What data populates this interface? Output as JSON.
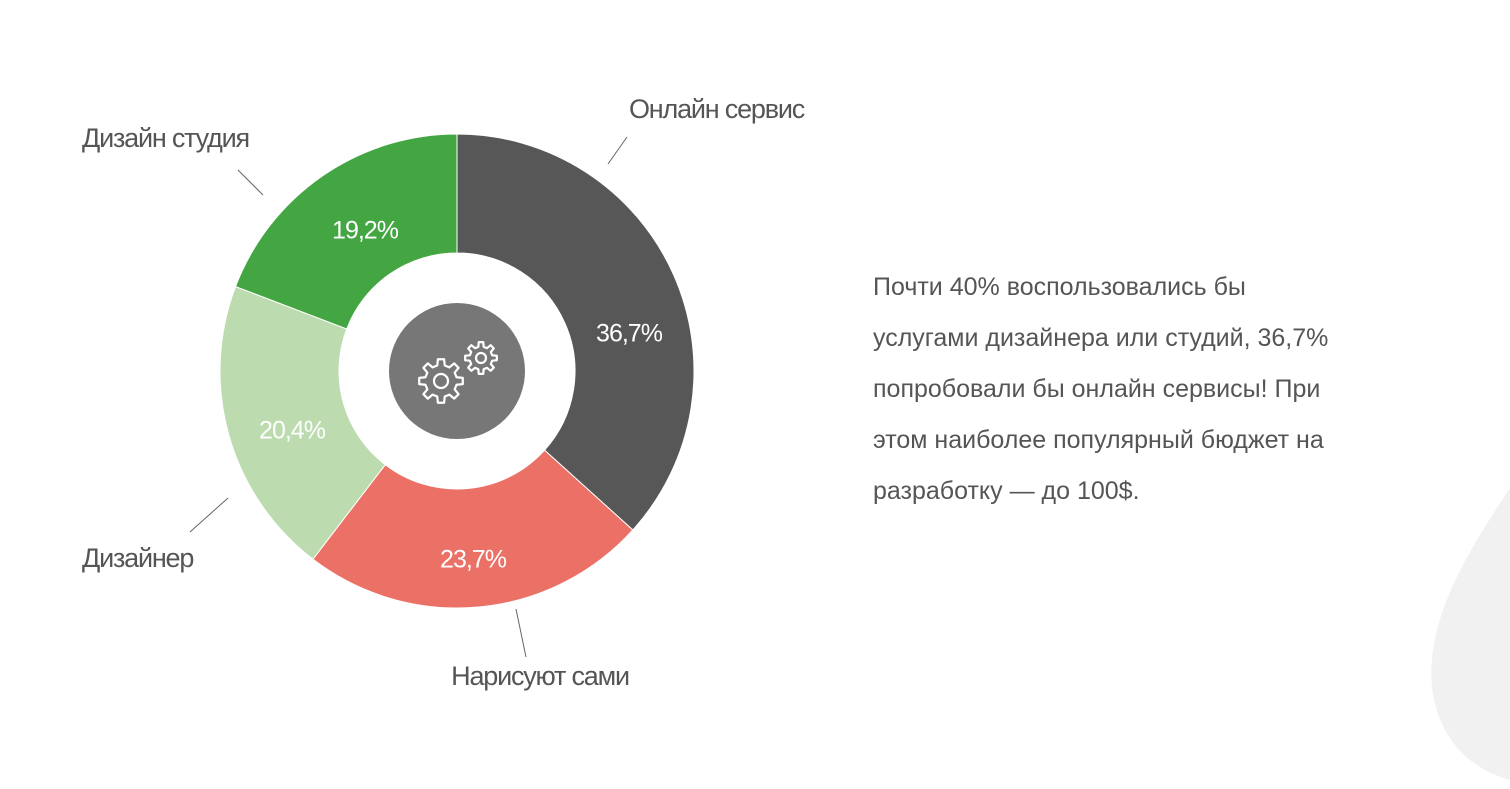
{
  "chart_data": {
    "type": "pie",
    "variant": "donut",
    "slices": [
      {
        "label": "Онлайн сервис",
        "value": 36.7,
        "value_label": "36,7%",
        "color": "#575757"
      },
      {
        "label": "Нарисуют сами",
        "value": 23.7,
        "value_label": "23,7%",
        "color": "#eb7167"
      },
      {
        "label": "Дизайнер",
        "value": 20.4,
        "value_label": "20,4%",
        "color": "#bcdcb0"
      },
      {
        "label": "Дизайн студия",
        "value": 19.2,
        "value_label": "19,2%",
        "color": "#43a643"
      }
    ],
    "start_angle_deg": 0,
    "direction": "clockwise",
    "center_icon": "gears-icon",
    "center_circle_color": "#777777"
  },
  "description": {
    "lines": [
      "Почти 40% воспользовались бы",
      "услугами дизайнера или студий, 36,7%",
      "попробовали бы онлайн сервисы! При",
      "этом наиболее популярный бюджет на",
      "разработку — до 100$."
    ]
  },
  "colors": {
    "label_text": "#555555",
    "background_shape": "#f1f1f1"
  }
}
